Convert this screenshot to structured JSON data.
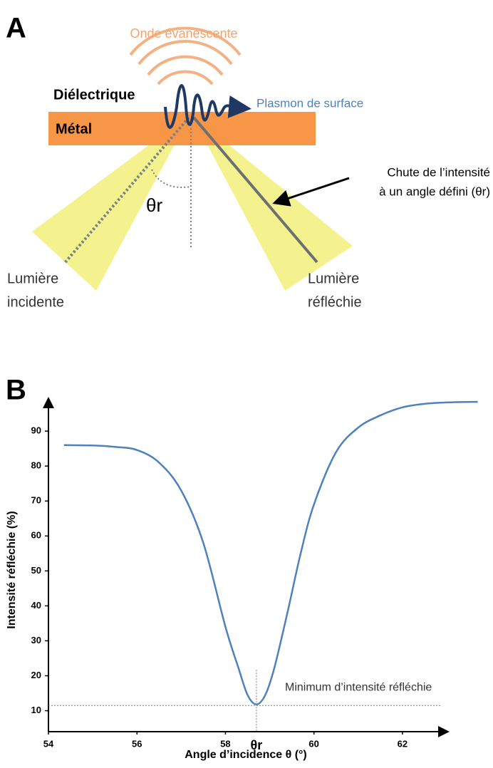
{
  "panel_a": {
    "label": "A",
    "evanescent": "Onde évanescente",
    "dielectric": "Diélectrique",
    "metal": "Métal",
    "plasmon": "Plasmon de surface",
    "drop_line1": "Chute de l’intensité",
    "drop_line2": "à un angle défini (θr)",
    "angle": "θr",
    "incident_line1": "Lumière",
    "incident_line2": "incidente",
    "reflected_line1": "Lumière",
    "reflected_line2": "réfléchie"
  },
  "panel_b": {
    "label": "B"
  },
  "chart_data": {
    "type": "line",
    "x_label": "Angle d’incidence θ (°)",
    "y_label": "Intensité réfléchie (%)",
    "x": [
      54.35,
      55,
      55.5,
      56,
      56.5,
      57,
      57.5,
      58,
      58.3,
      58.5,
      58.7,
      58.9,
      59.1,
      59.4,
      59.7,
      60,
      60.5,
      61,
      61.5,
      62,
      62.5,
      63,
      63.7
    ],
    "series": [
      {
        "name": "Intensité réfléchie",
        "color": "#4f81bd",
        "values": [
          86,
          85.9,
          85.5,
          84.6,
          81,
          73,
          58,
          34,
          22,
          14.5,
          11.8,
          14.5,
          22,
          38,
          55,
          69,
          84,
          91,
          94.5,
          96.8,
          97.8,
          98.2,
          98.4
        ]
      }
    ],
    "xlim": [
      54,
      63
    ],
    "ylim": [
      4,
      99
    ],
    "xticks": [
      54,
      56,
      58,
      60,
      62
    ],
    "yticks": [
      10,
      20,
      30,
      40,
      50,
      60,
      70,
      80,
      90
    ],
    "minimum": {
      "x": 58.7,
      "y": 11.5,
      "label": "θr",
      "annotation": "Minimum d’intensité réfléchie"
    }
  }
}
